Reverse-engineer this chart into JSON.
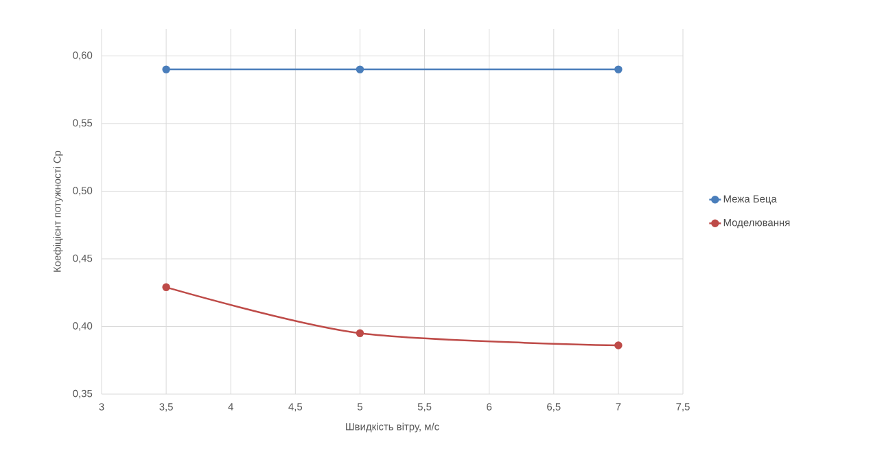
{
  "chart_data": {
    "type": "line",
    "xlabel": "Швидкість вітру, м/с",
    "ylabel": "Коефіцієнт потужності Cp",
    "xlim": [
      3,
      7.5
    ],
    "xticks": [
      3,
      {
        "value": 3.5,
        "label": "3,5"
      },
      4,
      {
        "value": 4.5,
        "label": "4,5"
      },
      5,
      {
        "value": 5.5,
        "label": "5,5"
      },
      6,
      {
        "value": 6.5,
        "label": "6,5"
      },
      7,
      {
        "value": 7.5,
        "label": "7,5"
      }
    ],
    "ylim": [
      0.35,
      0.62
    ],
    "yticks": [
      {
        "value": 0.35,
        "label": "0,35"
      },
      {
        "value": 0.4,
        "label": "0,40"
      },
      {
        "value": 0.45,
        "label": "0,45"
      },
      {
        "value": 0.5,
        "label": "0,50"
      },
      {
        "value": 0.55,
        "label": "0,55"
      },
      {
        "value": 0.6,
        "label": "0,60"
      }
    ],
    "x": [
      3.5,
      5,
      7
    ],
    "series": [
      {
        "name": "Межа Беца",
        "color": "#4a7ebb",
        "values": [
          0.59,
          0.59,
          0.59
        ]
      },
      {
        "name": "Моделювання",
        "color": "#be4b48",
        "values": [
          0.429,
          0.395,
          0.386
        ]
      }
    ],
    "grid": true,
    "legend": "right",
    "marker": "circle",
    "line_style": "solid"
  }
}
